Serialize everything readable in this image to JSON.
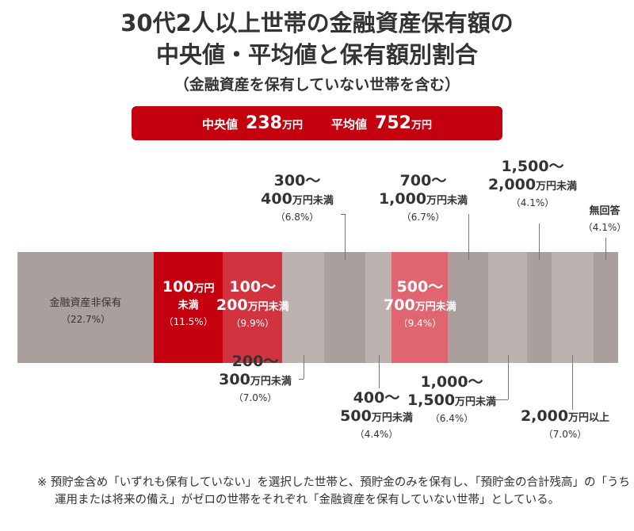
{
  "title": {
    "line1": "30代2人以上世帯の金融資産保有額の",
    "line2": "中央値・平均値と保有額別割合",
    "subtitle": "（金融資産を保有していない世帯を含む）"
  },
  "stats": {
    "median_label": "中央値",
    "median_value": "238",
    "avg_label": "平均値",
    "avg_value": "752",
    "unit": "万円",
    "color": "#c4000f"
  },
  "chart_data": {
    "type": "bar",
    "orientation": "horizontal-stacked",
    "unit": "%",
    "categories": [
      "金融資産非保有",
      "100万円未満",
      "100～200万円未満",
      "200～300万円未満",
      "300～400万円未満",
      "400～500万円未満",
      "500～700万円未満",
      "700～1,000万円未満",
      "1,000～1,500万円未満",
      "1,500～2,000万円未満",
      "2,000万円以上",
      "無回答"
    ],
    "values": [
      22.7,
      11.5,
      9.9,
      7.0,
      6.8,
      4.4,
      9.4,
      6.7,
      6.4,
      4.1,
      7.0,
      4.1
    ],
    "colors": [
      "#aa9f9c",
      "#c4000f",
      "#d1333f",
      "#bbb2b0",
      "#aa9f9c",
      "#bbb2b0",
      "#df6670",
      "#aa9f9c",
      "#bbb2b0",
      "#aa9f9c",
      "#bbb2b0",
      "#aa9f9c"
    ],
    "labels": [
      {
        "l1": "",
        "l2": "金融資産非保有",
        "pct": "（22.7%）"
      },
      {
        "l1": "100",
        "u1": "万円",
        "l2": "未満",
        "pct": "（11.5%）"
      },
      {
        "l1": "100～",
        "l2n": "200",
        "l2": "万円未満",
        "pct": "（9.9%）"
      },
      {
        "l1": "200～",
        "l2n": "300",
        "l2": "万円未満",
        "pct": "（7.0%）"
      },
      {
        "l1": "300～",
        "l2n": "400",
        "l2": "万円未満",
        "pct": "（6.8%）"
      },
      {
        "l1": "400～",
        "l2n": "500",
        "l2": "万円未満",
        "pct": "（4.4%）"
      },
      {
        "l1": "500～",
        "l2n": "700",
        "l2": "万円未満",
        "pct": "（9.4%）"
      },
      {
        "l1": "700～",
        "l2n": "1,000",
        "l2": "万円未満",
        "pct": "（6.7%）"
      },
      {
        "l1": "1,000～",
        "l2n": "1,500",
        "l2": "万円未満",
        "pct": "（6.4%）"
      },
      {
        "l1": "1,500～",
        "l2n": "2,000",
        "l2": "万円未満",
        "pct": "（4.1%）"
      },
      {
        "l1": "",
        "l2n": "2,000",
        "l2": "万円以上",
        "pct": "（7.0%）"
      },
      {
        "l1": "",
        "l2": "無回答",
        "pct": "（4.1%）"
      }
    ]
  },
  "note": {
    "line1": "※ 預貯金含め「いずれも保有していない」を選択した世帯と、預貯金のみを保有し、「預貯金の合計残高」の「うち運用または将来の備え」がゼロの世帯をそれぞれ「金融資産を保有していない世帯」としている。"
  }
}
